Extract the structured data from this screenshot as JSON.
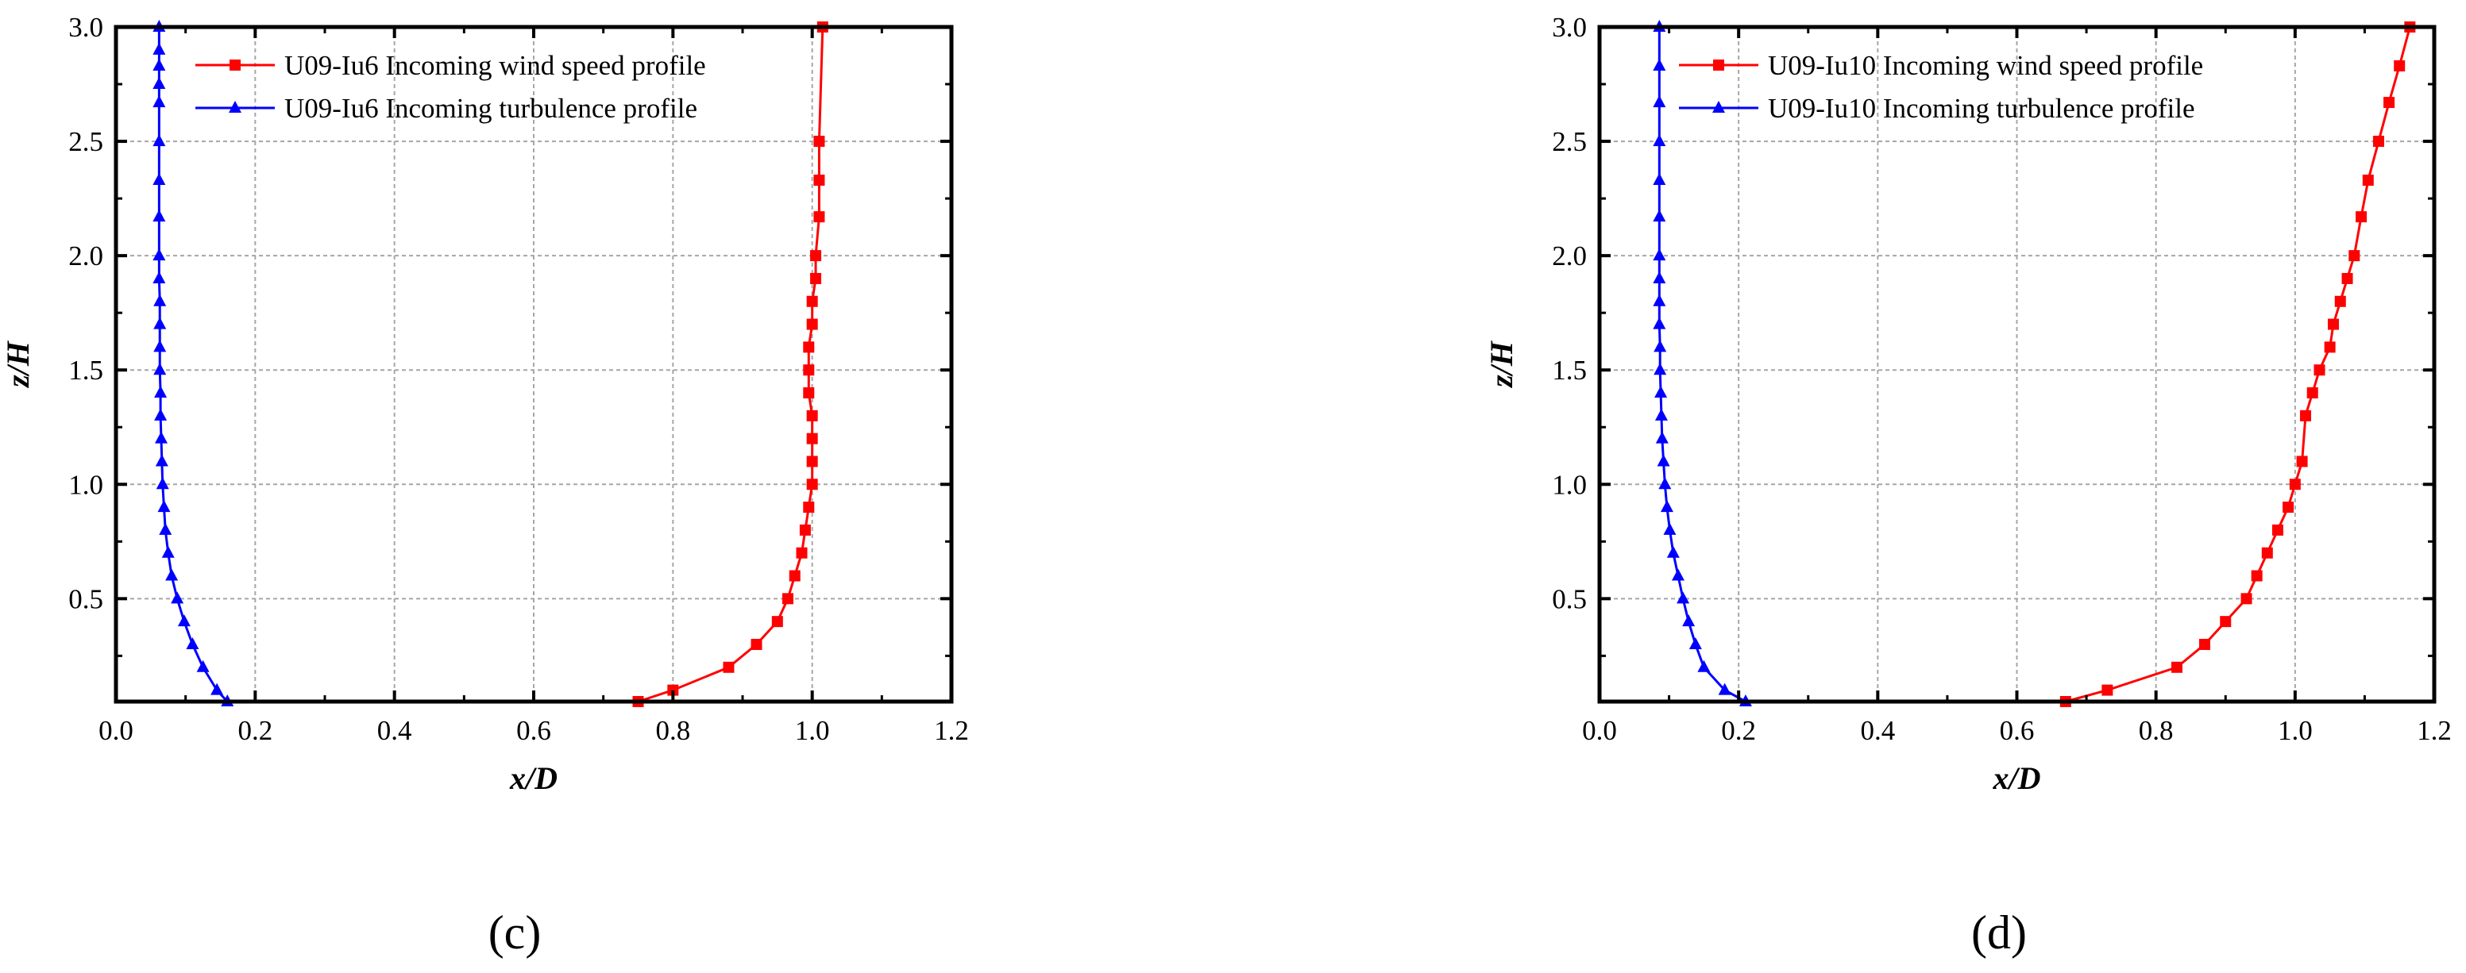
{
  "chart_data": [
    {
      "type": "line",
      "panel_label": "(c)",
      "xlabel": "x/D",
      "ylabel": "z/H",
      "xlim": [
        0.0,
        1.2
      ],
      "ylim": [
        0.05,
        3.0
      ],
      "xticks": [
        "0.0",
        "0.2",
        "0.4",
        "0.6",
        "0.8",
        "1.0",
        "1.2"
      ],
      "yticks": [
        "0.5",
        "1.0",
        "1.5",
        "2.0",
        "2.5",
        "3.0"
      ],
      "grid": true,
      "legend_position": "top-right",
      "series": [
        {
          "name": "U09-Iu6 Incoming wind speed profile",
          "color": "#ff0000",
          "marker": "square",
          "x": [
            0.75,
            0.8,
            0.88,
            0.92,
            0.95,
            0.965,
            0.975,
            0.985,
            0.99,
            0.995,
            1.0,
            1.0,
            1.0,
            1.0,
            0.995,
            0.995,
            0.995,
            1.0,
            1.0,
            1.005,
            1.005,
            1.01,
            1.01,
            1.01,
            1.015
          ],
          "y": [
            0.05,
            0.1,
            0.2,
            0.3,
            0.4,
            0.5,
            0.6,
            0.7,
            0.8,
            0.9,
            1.0,
            1.1,
            1.2,
            1.3,
            1.4,
            1.5,
            1.6,
            1.7,
            1.8,
            1.9,
            2.0,
            2.17,
            2.33,
            2.5,
            3.0
          ]
        },
        {
          "name": "U09-Iu6 Incoming turbulence profile",
          "color": "#0000ff",
          "marker": "triangle",
          "x": [
            0.16,
            0.145,
            0.125,
            0.11,
            0.098,
            0.088,
            0.08,
            0.075,
            0.071,
            0.069,
            0.067,
            0.066,
            0.065,
            0.064,
            0.064,
            0.063,
            0.063,
            0.063,
            0.063,
            0.062,
            0.062,
            0.062,
            0.062,
            0.062,
            0.062,
            0.062,
            0.062,
            0.062,
            0.062
          ],
          "y": [
            0.05,
            0.1,
            0.2,
            0.3,
            0.4,
            0.5,
            0.6,
            0.7,
            0.8,
            0.9,
            1.0,
            1.1,
            1.2,
            1.3,
            1.4,
            1.5,
            1.6,
            1.7,
            1.8,
            1.9,
            2.0,
            2.17,
            2.33,
            2.5,
            2.67,
            2.83,
            3.0,
            2.9,
            2.75
          ]
        }
      ]
    },
    {
      "type": "line",
      "panel_label": "(d)",
      "xlabel": "x/D",
      "ylabel": "z/H",
      "xlim": [
        0.0,
        1.2
      ],
      "ylim": [
        0.05,
        3.0
      ],
      "xticks": [
        "0.0",
        "0.2",
        "0.4",
        "0.6",
        "0.8",
        "1.0",
        "1.2"
      ],
      "yticks": [
        "0.5",
        "1.0",
        "1.5",
        "2.0",
        "2.5",
        "3.0"
      ],
      "grid": true,
      "legend_position": "top-right",
      "series": [
        {
          "name": "U09-Iu10 Incoming wind speed profile",
          "color": "#ff0000",
          "marker": "square",
          "x": [
            0.67,
            0.73,
            0.83,
            0.87,
            0.9,
            0.93,
            0.945,
            0.96,
            0.975,
            0.99,
            1.0,
            1.01,
            1.015,
            1.025,
            1.035,
            1.05,
            1.055,
            1.065,
            1.075,
            1.085,
            1.095,
            1.105,
            1.12,
            1.135,
            1.15,
            1.165
          ],
          "y": [
            0.05,
            0.1,
            0.2,
            0.3,
            0.4,
            0.5,
            0.6,
            0.7,
            0.8,
            0.9,
            1.0,
            1.1,
            1.3,
            1.4,
            1.5,
            1.6,
            1.7,
            1.8,
            1.9,
            2.0,
            2.17,
            2.33,
            2.5,
            2.67,
            2.83,
            3.0
          ]
        },
        {
          "name": "U09-Iu10 Incoming turbulence profile",
          "color": "#0000ff",
          "marker": "triangle",
          "x": [
            0.21,
            0.18,
            0.15,
            0.138,
            0.128,
            0.12,
            0.113,
            0.106,
            0.101,
            0.097,
            0.094,
            0.092,
            0.09,
            0.089,
            0.088,
            0.087,
            0.087,
            0.086,
            0.086,
            0.086,
            0.086,
            0.086,
            0.086,
            0.086,
            0.086,
            0.086,
            0.086
          ],
          "y": [
            0.05,
            0.1,
            0.2,
            0.3,
            0.4,
            0.5,
            0.6,
            0.7,
            0.8,
            0.9,
            1.0,
            1.1,
            1.2,
            1.3,
            1.4,
            1.5,
            1.6,
            1.7,
            1.8,
            1.9,
            2.0,
            2.17,
            2.33,
            2.5,
            2.67,
            2.83,
            3.0
          ]
        }
      ]
    }
  ]
}
